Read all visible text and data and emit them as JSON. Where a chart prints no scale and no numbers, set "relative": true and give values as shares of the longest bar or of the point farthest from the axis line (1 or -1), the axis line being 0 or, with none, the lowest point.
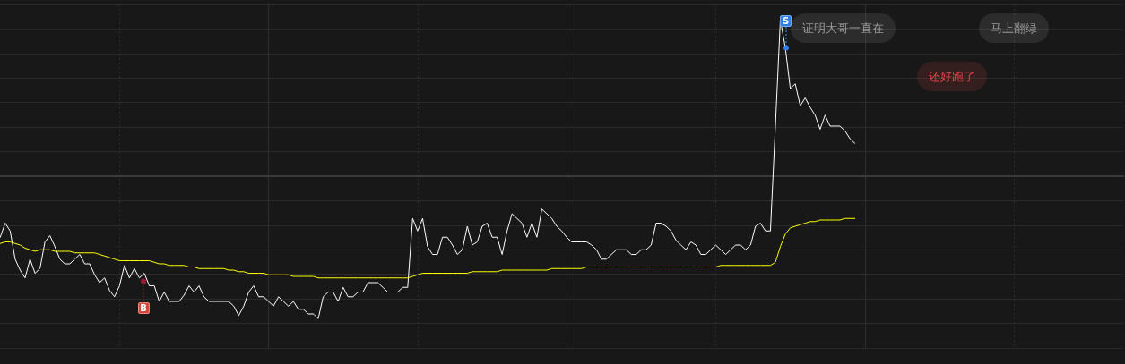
{
  "chart_data": {
    "type": "line",
    "relative": true,
    "grid": true,
    "annotations": [
      {
        "text": "S",
        "y": 0.82
      },
      "证明大哥一直在",
      "马上翻绿",
      "还好跑了",
      {
        "text": "B",
        "y": -0.67
      }
    ],
    "categories": [
      null,
      null,
      null,
      null,
      null,
      null,
      null,
      null,
      null,
      null,
      null,
      null,
      null,
      null,
      null,
      null,
      null,
      null,
      null,
      null,
      null,
      null,
      null,
      null,
      null,
      null,
      null,
      null,
      null,
      null,
      null,
      null,
      null,
      null,
      null,
      null,
      null,
      null,
      null,
      null,
      null,
      null,
      null,
      null,
      null,
      null,
      null,
      null,
      null,
      null,
      null,
      null,
      null,
      null,
      null,
      null,
      null,
      null,
      null,
      null,
      null,
      null,
      null,
      null,
      null,
      null,
      null,
      null,
      null,
      null,
      null,
      null,
      null,
      null,
      null,
      null,
      null,
      null,
      null,
      null,
      null,
      null,
      null,
      null,
      null,
      null,
      null,
      null,
      null,
      null,
      null,
      null,
      null,
      null,
      null,
      null,
      null,
      null,
      null,
      null,
      null,
      null,
      null,
      null,
      null,
      null,
      null,
      null,
      null,
      null,
      null,
      null,
      null,
      null,
      null,
      null,
      null,
      null,
      null,
      null,
      null,
      null,
      null,
      null,
      null,
      null,
      null,
      null,
      null,
      null,
      null,
      null,
      null,
      null,
      null,
      null,
      null,
      null,
      null,
      null,
      null,
      null,
      null,
      null,
      null,
      null,
      null,
      null,
      null,
      null,
      null,
      null,
      null,
      null,
      null,
      null,
      null,
      null,
      null,
      null,
      null,
      null,
      null,
      null,
      null,
      null,
      null,
      null,
      null,
      null,
      null,
      null,
      null,
      null,
      null,
      null,
      null,
      null,
      null,
      null,
      null,
      null,
      null,
      null,
      null,
      null,
      null,
      null,
      null,
      null,
      null,
      null,
      null,
      null,
      null,
      null,
      null,
      null,
      null,
      null,
      null,
      null,
      null,
      null,
      null,
      null,
      null,
      null,
      null,
      null,
      null,
      null,
      null,
      null,
      null,
      null,
      null,
      null,
      null,
      null,
      null,
      null,
      null,
      null,
      null,
      null,
      null,
      null,
      null,
      null,
      null,
      null,
      null
    ],
    "series": [
      {
        "color": "#ffffff",
        "values": [
          null,
          null,
          null,
          null,
          null,
          null,
          -0.39,
          -0.3,
          -0.35,
          -0.53,
          -0.6,
          -0.65,
          -0.53,
          -0.62,
          -0.59,
          -0.42,
          -0.38,
          -0.45,
          -0.53,
          -0.56,
          -0.56,
          -0.53,
          -0.5,
          -0.56,
          -0.56,
          -0.63,
          -0.68,
          -0.65,
          -0.73,
          -0.77,
          -0.7,
          -0.57,
          -0.65,
          -0.59,
          -0.65,
          -0.62,
          -0.7,
          -0.7,
          -0.8,
          -0.74,
          -0.8,
          -0.8,
          -0.8,
          -0.76,
          -0.7,
          -0.74,
          -0.7,
          -0.77,
          -0.8,
          -0.8,
          -0.8,
          -0.8,
          -0.8,
          -0.83,
          -0.89,
          -0.83,
          -0.74,
          -0.7,
          -0.77,
          -0.77,
          -0.8,
          -0.83,
          -0.77,
          -0.8,
          -0.83,
          -0.8,
          -0.85,
          -0.85,
          -0.88,
          -0.88,
          -0.91,
          -0.77,
          -0.74,
          -0.74,
          -0.8,
          -0.71,
          -0.77,
          -0.77,
          -0.74,
          -0.74,
          -0.68,
          -0.68,
          -0.68,
          -0.71,
          -0.74,
          -0.74,
          -0.74,
          -0.71,
          -0.71,
          -0.27,
          -0.35,
          -0.27,
          -0.45,
          -0.5,
          -0.5,
          -0.39,
          -0.39,
          -0.44,
          -0.5,
          -0.47,
          -0.32,
          -0.44,
          -0.42,
          -0.32,
          -0.3,
          -0.39,
          -0.39,
          -0.5,
          -0.35,
          -0.24,
          -0.27,
          -0.3,
          -0.39,
          -0.3,
          -0.39,
          -0.21,
          -0.24,
          -0.27,
          -0.32,
          -0.35,
          -0.39,
          -0.42,
          -0.42,
          -0.42,
          -0.42,
          -0.44,
          -0.47,
          -0.53,
          -0.53,
          -0.5,
          -0.47,
          -0.47,
          -0.47,
          -0.5,
          -0.5,
          -0.47,
          -0.47,
          -0.44,
          -0.3,
          -0.3,
          -0.32,
          -0.35,
          -0.41,
          -0.44,
          -0.47,
          -0.42,
          -0.44,
          -0.5,
          -0.5,
          -0.47,
          -0.44,
          -0.47,
          -0.5,
          -0.47,
          -0.44,
          -0.44,
          -0.47,
          -0.44,
          -0.32,
          -0.3,
          -0.35,
          -0.35,
          0.32,
          1,
          0.82,
          0.56,
          0.59,
          0.45,
          0.5,
          0.44,
          0.39,
          0.3,
          0.39,
          0.32,
          0.32,
          0.32,
          0.29,
          0.24,
          0.21,
          null,
          null,
          null,
          null,
          null,
          null,
          null,
          null,
          null,
          null,
          null,
          null,
          null,
          null,
          null,
          null,
          null,
          null,
          null,
          null,
          null,
          null,
          null,
          null,
          null,
          null,
          null,
          null,
          null,
          null,
          null,
          null,
          null,
          null,
          null,
          null,
          null,
          null,
          null,
          null,
          null,
          null,
          null,
          null,
          null,
          null,
          null,
          null,
          null,
          null,
          null,
          null,
          null,
          null
        ]
      },
      {
        "color": "#ffff00",
        "values": [
          null,
          null,
          null,
          null,
          null,
          null,
          -0.43,
          -0.42,
          -0.42,
          -0.43,
          -0.44,
          -0.46,
          -0.47,
          -0.48,
          -0.47,
          -0.47,
          -0.47,
          -0.48,
          -0.48,
          -0.48,
          -0.48,
          -0.49,
          -0.49,
          -0.49,
          -0.49,
          -0.49,
          -0.5,
          -0.51,
          -0.52,
          -0.53,
          -0.54,
          -0.54,
          -0.54,
          -0.54,
          -0.54,
          -0.54,
          -0.54,
          -0.55,
          -0.56,
          -0.56,
          -0.57,
          -0.57,
          -0.57,
          -0.57,
          -0.58,
          -0.58,
          -0.59,
          -0.59,
          -0.59,
          -0.59,
          -0.59,
          -0.59,
          -0.6,
          -0.6,
          -0.61,
          -0.61,
          -0.62,
          -0.62,
          -0.62,
          -0.62,
          -0.63,
          -0.63,
          -0.63,
          -0.63,
          -0.63,
          -0.64,
          -0.64,
          -0.64,
          -0.64,
          -0.64,
          -0.65,
          -0.65,
          -0.65,
          -0.65,
          -0.65,
          -0.65,
          -0.65,
          -0.65,
          -0.65,
          -0.65,
          -0.65,
          -0.65,
          -0.65,
          -0.65,
          -0.65,
          -0.65,
          -0.65,
          -0.65,
          -0.65,
          -0.64,
          -0.63,
          -0.62,
          -0.62,
          -0.62,
          -0.62,
          -0.62,
          -0.62,
          -0.62,
          -0.62,
          -0.62,
          -0.62,
          -0.61,
          -0.61,
          -0.61,
          -0.61,
          -0.61,
          -0.61,
          -0.6,
          -0.6,
          -0.6,
          -0.6,
          -0.6,
          -0.6,
          -0.6,
          -0.6,
          -0.6,
          -0.6,
          -0.59,
          -0.59,
          -0.59,
          -0.59,
          -0.59,
          -0.59,
          -0.59,
          -0.58,
          -0.58,
          -0.58,
          -0.58,
          -0.58,
          -0.58,
          -0.58,
          -0.58,
          -0.58,
          -0.58,
          -0.58,
          -0.58,
          -0.58,
          -0.58,
          -0.58,
          -0.58,
          -0.58,
          -0.58,
          -0.58,
          -0.58,
          -0.58,
          -0.58,
          -0.58,
          -0.58,
          -0.58,
          -0.58,
          -0.58,
          -0.57,
          -0.57,
          -0.57,
          -0.57,
          -0.57,
          -0.57,
          -0.57,
          -0.57,
          -0.57,
          -0.57,
          -0.57,
          -0.55,
          -0.45,
          -0.37,
          -0.33,
          -0.32,
          -0.31,
          -0.3,
          -0.29,
          -0.29,
          -0.28,
          -0.28,
          -0.28,
          -0.28,
          -0.28,
          -0.27,
          -0.27,
          -0.27,
          null,
          null,
          null,
          null,
          null,
          null,
          null,
          null,
          null,
          null,
          null,
          null,
          null,
          null,
          null,
          null,
          null,
          null,
          null,
          null,
          null,
          null,
          null,
          null,
          null,
          null,
          null,
          null,
          null,
          null,
          null,
          null,
          null,
          null,
          null,
          null,
          null,
          null,
          null,
          null,
          null,
          null,
          null,
          null,
          null,
          null,
          null,
          null,
          null,
          null,
          null,
          null,
          null,
          null
        ]
      }
    ]
  }
}
